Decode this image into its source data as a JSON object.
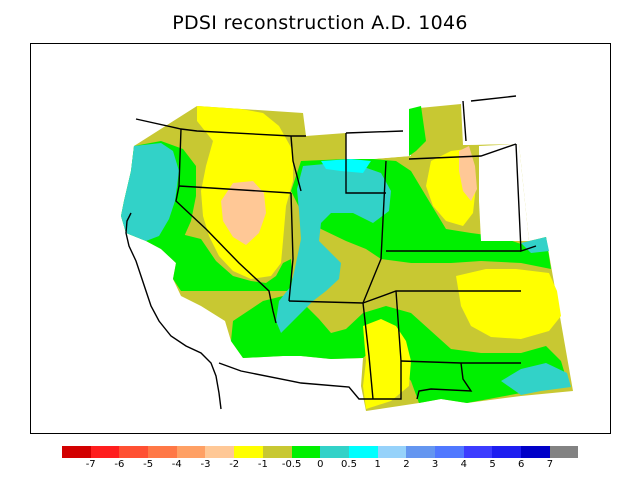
{
  "title": "PDSI reconstruction A.D. 1046",
  "colors": {
    "c1": "#d20000",
    "c2": "#ff1e1e",
    "c3": "#ff5032",
    "c4": "#ff7846",
    "c5": "#ffa064",
    "c6": "#ffc896",
    "c7": "#ffff00",
    "c8": "#c8c832",
    "c9": "#00f000",
    "c10": "#32d2c8",
    "c11": "#00ffff",
    "c12": "#96d2fa",
    "c13": "#6496f0",
    "c14": "#5078ff",
    "c15": "#3c3cff",
    "c16": "#1e1ef0",
    "c17": "#0000c8",
    "c18": "#828282"
  },
  "colorbar": {
    "swatches": [
      "c1",
      "c2",
      "c3",
      "c4",
      "c5",
      "c6",
      "c7",
      "c8",
      "c9",
      "c10",
      "c11",
      "c12",
      "c13",
      "c14",
      "c15",
      "c16",
      "c17",
      "c18"
    ],
    "labels": [
      "-7",
      "-6",
      "-5",
      "-4",
      "-3",
      "-2",
      "-1",
      "-0.5",
      "0",
      "0.5",
      "1",
      "2",
      "3",
      "4",
      "5",
      "6",
      "7"
    ]
  }
}
